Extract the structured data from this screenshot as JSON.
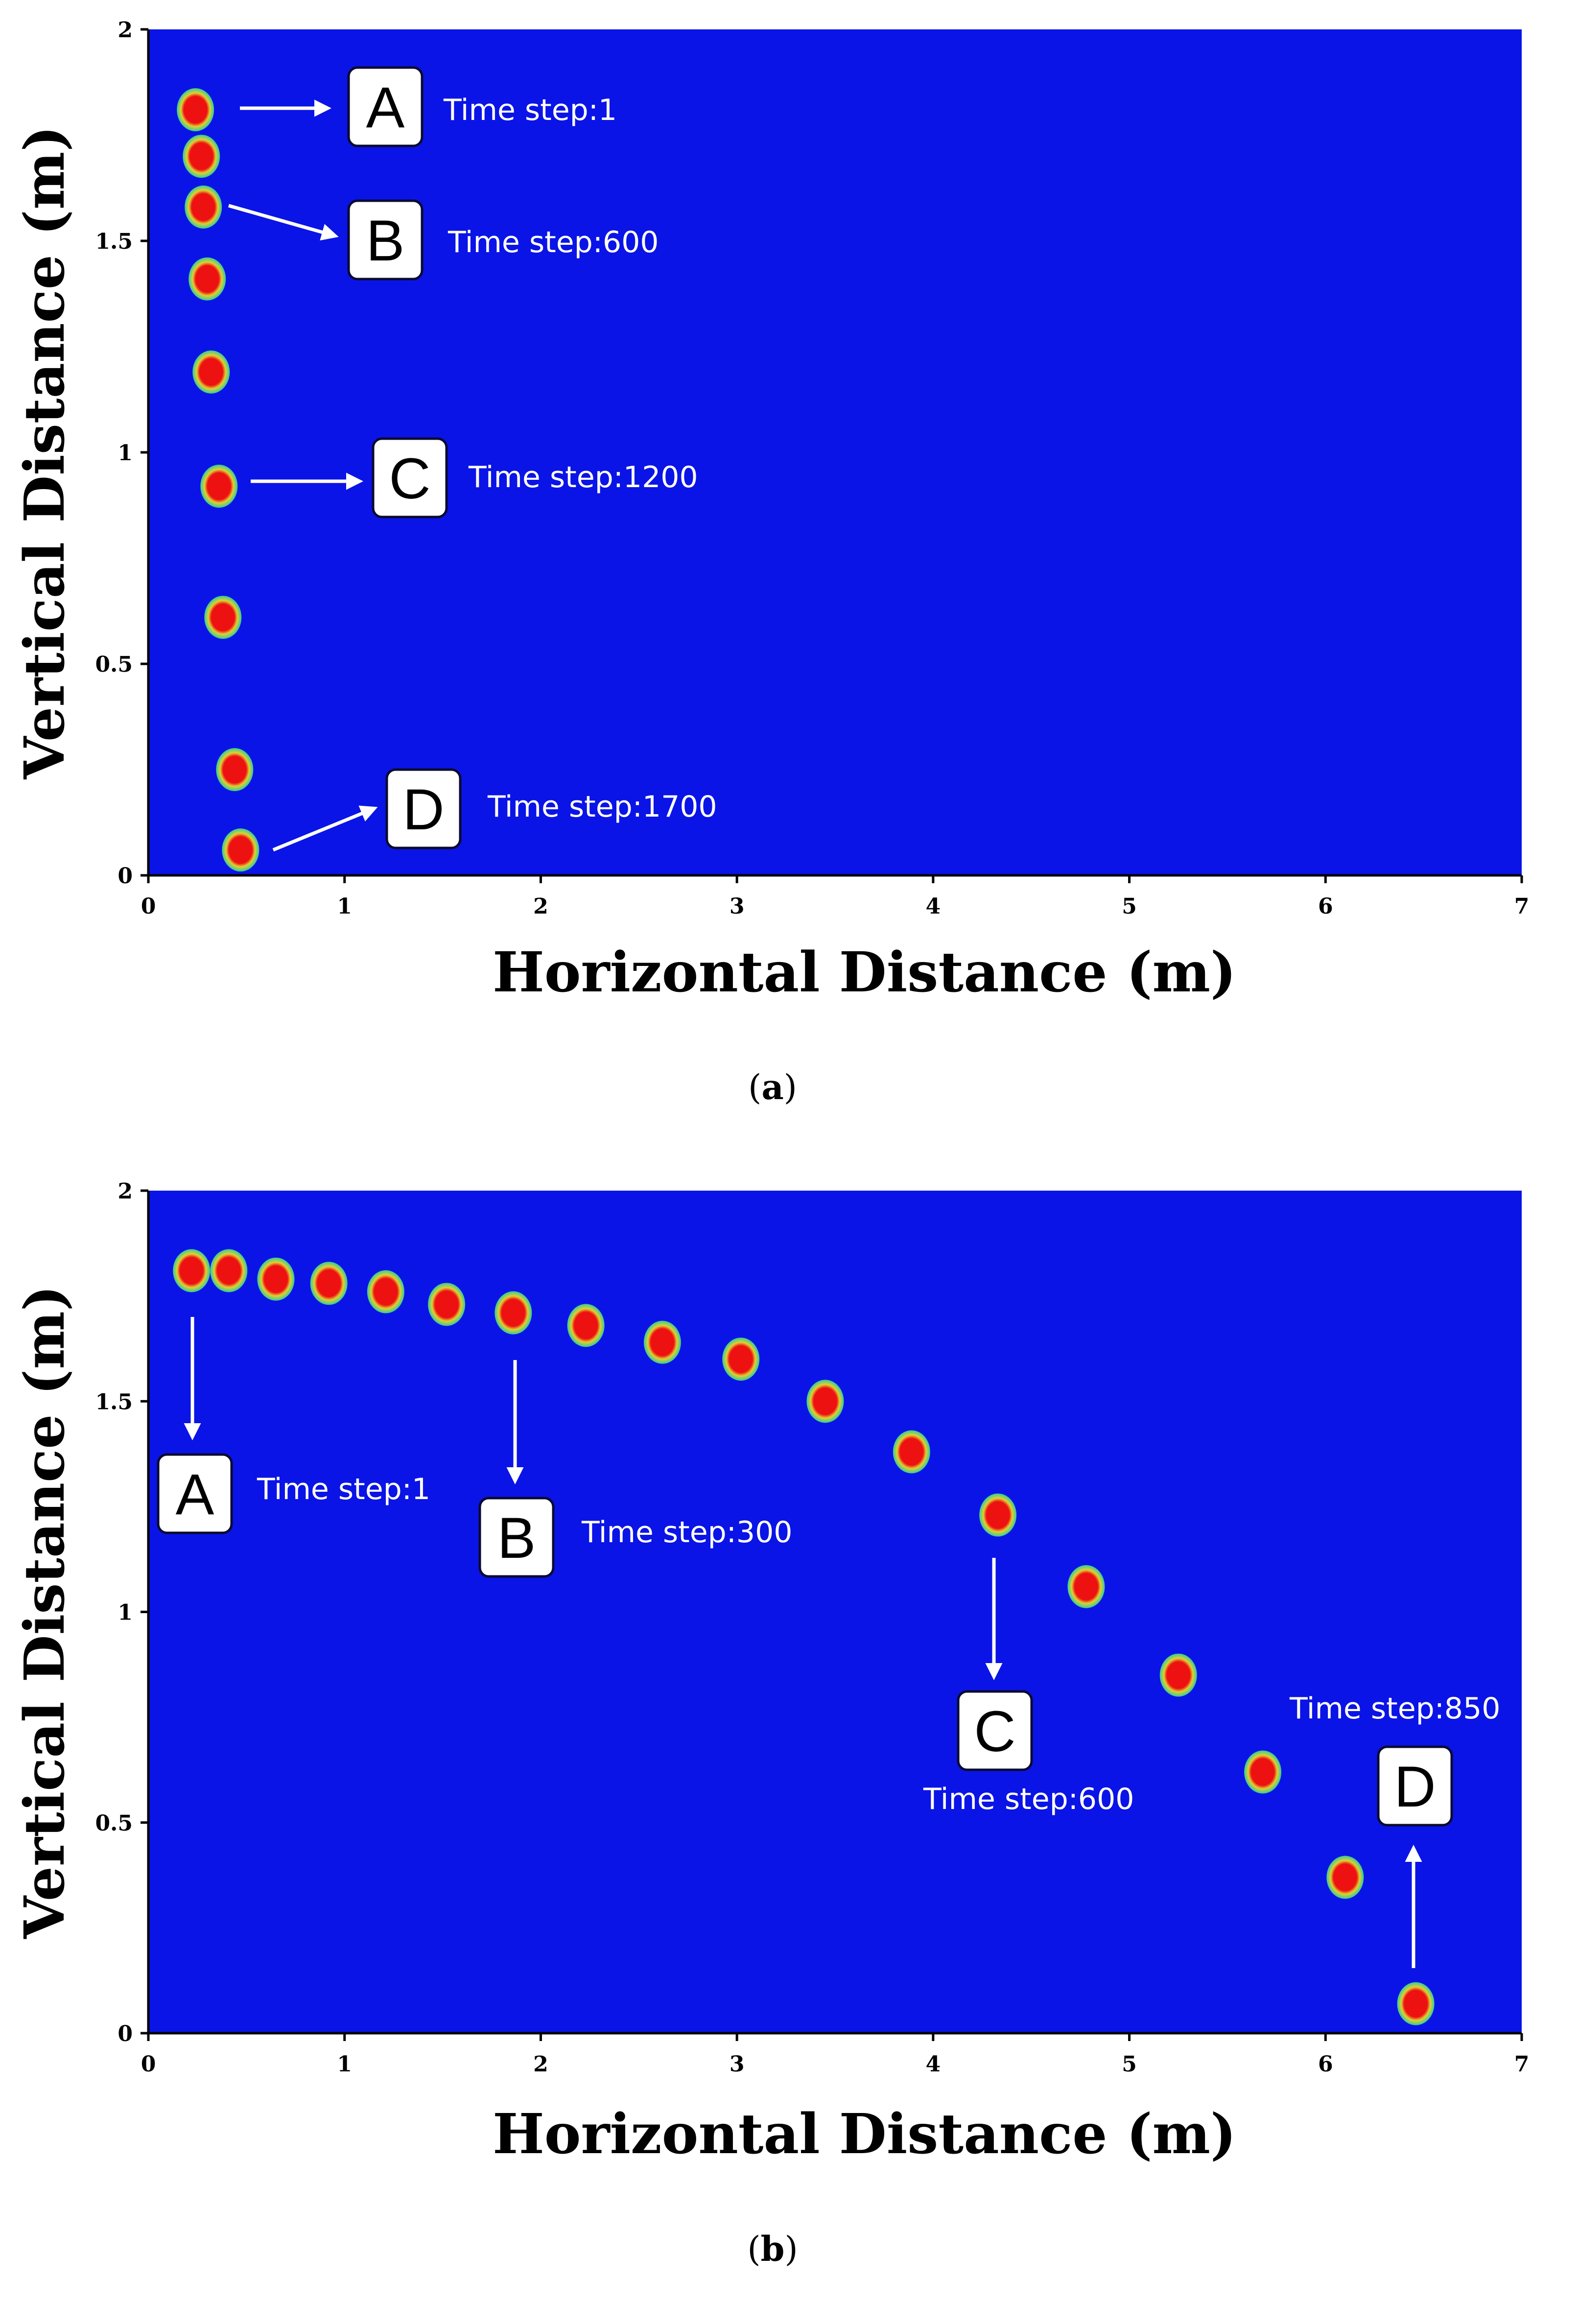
{
  "colors": {
    "plot_background": "#0a14e6",
    "particle_core": "#ee1111",
    "particle_ring": "#e0d030",
    "particle_halo": "#33cc99",
    "annotation": "#ffffff"
  },
  "chart_data": [
    {
      "type": "scatter",
      "panel": "(a)",
      "panel_letter": "a",
      "xlabel": "Horizontal Distance (m)",
      "ylabel": "Vertical Distance (m)",
      "xlim": [
        0,
        7
      ],
      "ylim": [
        0,
        2
      ],
      "xticks": [
        "0",
        "1",
        "2",
        "3",
        "4",
        "5",
        "6",
        "7"
      ],
      "yticks": [
        "0",
        "0.5",
        "1",
        "1.5",
        "2"
      ],
      "grid": false,
      "points": [
        {
          "x": 0.24,
          "y": 1.81
        },
        {
          "x": 0.27,
          "y": 1.7
        },
        {
          "x": 0.28,
          "y": 1.58
        },
        {
          "x": 0.3,
          "y": 1.41
        },
        {
          "x": 0.32,
          "y": 1.19
        },
        {
          "x": 0.36,
          "y": 0.92
        },
        {
          "x": 0.38,
          "y": 0.61
        },
        {
          "x": 0.44,
          "y": 0.25
        },
        {
          "x": 0.47,
          "y": 0.06
        }
      ],
      "annotations": [
        {
          "letter": "A",
          "text": "Time step:1"
        },
        {
          "letter": "B",
          "text": "Time step:600"
        },
        {
          "letter": "C",
          "text": "Time step:1200"
        },
        {
          "letter": "D",
          "text": "Time step:1700"
        }
      ]
    },
    {
      "type": "scatter",
      "panel": "(b)",
      "panel_letter": "b",
      "xlabel": "Horizontal Distance (m)",
      "ylabel": "Vertical Distance (m)",
      "xlim": [
        0,
        7
      ],
      "ylim": [
        0,
        2
      ],
      "xticks": [
        "0",
        "1",
        "2",
        "3",
        "4",
        "5",
        "6",
        "7"
      ],
      "yticks": [
        "0",
        "0.5",
        "1",
        "1.5",
        "2"
      ],
      "grid": false,
      "points": [
        {
          "x": 0.22,
          "y": 1.81
        },
        {
          "x": 0.41,
          "y": 1.81
        },
        {
          "x": 0.65,
          "y": 1.79
        },
        {
          "x": 0.92,
          "y": 1.78
        },
        {
          "x": 1.21,
          "y": 1.76
        },
        {
          "x": 1.52,
          "y": 1.73
        },
        {
          "x": 1.86,
          "y": 1.71
        },
        {
          "x": 2.23,
          "y": 1.68
        },
        {
          "x": 2.62,
          "y": 1.64
        },
        {
          "x": 3.02,
          "y": 1.6
        },
        {
          "x": 3.45,
          "y": 1.5
        },
        {
          "x": 3.89,
          "y": 1.38
        },
        {
          "x": 4.33,
          "y": 1.23
        },
        {
          "x": 4.78,
          "y": 1.06
        },
        {
          "x": 5.25,
          "y": 0.85
        },
        {
          "x": 5.68,
          "y": 0.62
        },
        {
          "x": 6.1,
          "y": 0.37
        },
        {
          "x": 6.46,
          "y": 0.07
        }
      ],
      "annotations": [
        {
          "letter": "A",
          "text": "Time step:1"
        },
        {
          "letter": "B",
          "text": "Time step:300"
        },
        {
          "letter": "C",
          "text": "Time step:600"
        },
        {
          "letter": "D",
          "text": "Time step:850"
        }
      ]
    }
  ]
}
